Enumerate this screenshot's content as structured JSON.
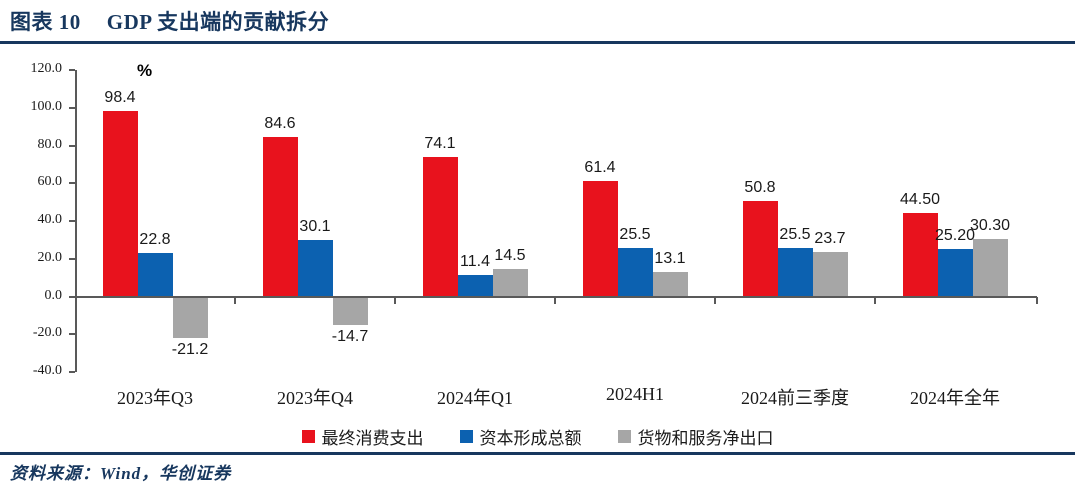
{
  "header": {
    "figure_label": "图表 10",
    "title": "GDP 支出端的贡献拆分"
  },
  "footer": {
    "source": "资料来源：Wind，华创证券"
  },
  "colors": {
    "accent_navy": "#17375e",
    "axis_gray": "#595959"
  },
  "chart_data": {
    "type": "bar",
    "title": "GDP 支出端的贡献拆分",
    "unit_label": "%",
    "xlabel": "",
    "ylabel": "%",
    "ylim": [
      -40,
      120
    ],
    "y_tick_step": 20,
    "grid": false,
    "legend_position": "bottom",
    "categories": [
      "2023年Q3",
      "2023年Q4",
      "2024年Q1",
      "2024H1",
      "2024前三季度",
      "2024年全年"
    ],
    "y_ticks": [
      "120.0",
      "100.0",
      "80.0",
      "60.0",
      "40.0",
      "20.0",
      "0.0",
      "-20.0",
      "-40.0"
    ],
    "y_tick_values": [
      120,
      100,
      80,
      60,
      40,
      20,
      0,
      -20,
      -40
    ],
    "series": [
      {
        "name": "最终消费支出",
        "color": "#e8121d",
        "values": [
          98.4,
          84.6,
          74.1,
          61.4,
          50.8,
          44.5
        ],
        "labels": [
          "98.4",
          "84.6",
          "74.1",
          "61.4",
          "50.8",
          "44.50"
        ]
      },
      {
        "name": "资本形成总额",
        "color": "#0c61b0",
        "values": [
          22.8,
          30.1,
          11.4,
          25.5,
          25.5,
          25.2
        ],
        "labels": [
          "22.8",
          "30.1",
          "11.4",
          "25.5",
          "25.5",
          "25.20"
        ]
      },
      {
        "name": "货物和服务净出口",
        "color": "#a6a6a6",
        "values": [
          -21.2,
          -14.7,
          14.5,
          13.1,
          23.7,
          30.3
        ],
        "labels": [
          "-21.2",
          "-14.7",
          "14.5",
          "13.1",
          "23.7",
          "30.30"
        ]
      }
    ]
  }
}
